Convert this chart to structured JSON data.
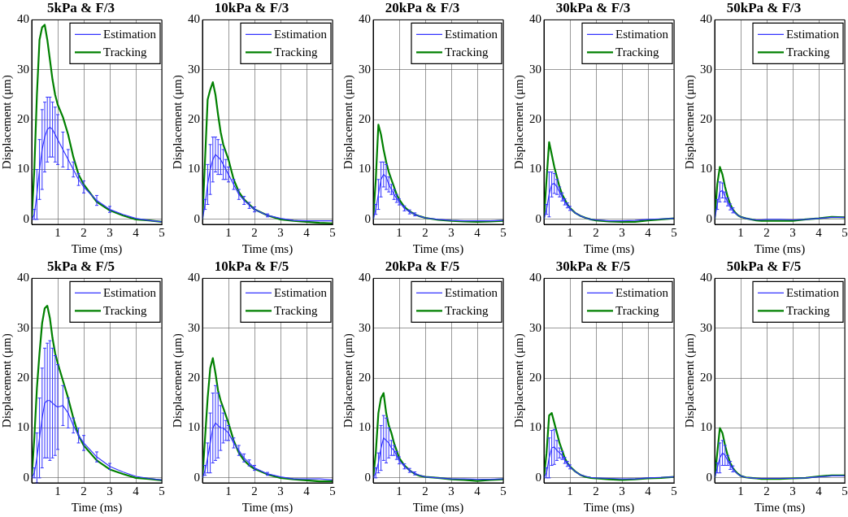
{
  "chart_data": [
    {
      "type": "line",
      "title": "5kPa & F/3",
      "xlabel": "Time (ms)",
      "ylabel": "Displacement (μm)",
      "xlim": [
        0,
        5
      ],
      "ylim": [
        -1,
        40
      ],
      "xticks": [
        1,
        2,
        3,
        4,
        5
      ],
      "yticks": [
        0,
        10,
        20,
        30,
        40
      ],
      "grid": true,
      "legend": "top right",
      "x": [
        0,
        0.1,
        0.2,
        0.3,
        0.4,
        0.5,
        0.6,
        0.7,
        0.8,
        0.9,
        1,
        1.2,
        1.4,
        1.6,
        1.8,
        2,
        2.5,
        3,
        3.5,
        4,
        4.5,
        5
      ],
      "series": [
        {
          "name": "Estimation",
          "color": "#3333ff",
          "values": [
            0,
            1,
            5,
            10,
            14,
            16.5,
            18,
            18.5,
            18,
            17,
            16,
            14,
            12,
            10,
            8,
            6.5,
            3.8,
            2,
            1,
            0.2,
            -0.2,
            -0.5
          ],
          "errors": [
            null,
            1,
            5,
            6,
            8,
            7,
            6.5,
            6,
            5.5,
            5.5,
            5,
            3.5,
            2,
            1.5,
            1.2,
            1.2,
            1,
            0.6,
            null,
            null,
            null,
            null
          ]
        },
        {
          "name": "Tracking",
          "color": "#008000",
          "values": [
            0,
            10,
            25,
            36,
            38.5,
            39,
            36,
            32,
            28,
            25,
            23,
            20.5,
            17,
            12.5,
            9,
            7,
            3.5,
            1.8,
            0.8,
            0,
            -0.2,
            -0.5
          ]
        }
      ]
    },
    {
      "type": "line",
      "title": "10kPa & F/3",
      "xlabel": "Time (ms)",
      "ylabel": "Displacement (μm)",
      "xlim": [
        0,
        5
      ],
      "ylim": [
        -1,
        40
      ],
      "xticks": [
        1,
        2,
        3,
        4,
        5
      ],
      "yticks": [
        0,
        10,
        20,
        30,
        40
      ],
      "grid": true,
      "legend": "top right",
      "x": [
        0,
        0.1,
        0.2,
        0.3,
        0.4,
        0.5,
        0.6,
        0.7,
        0.8,
        0.9,
        1,
        1.2,
        1.4,
        1.6,
        1.8,
        2,
        2.5,
        3,
        3.5,
        4,
        4.5,
        5
      ],
      "series": [
        {
          "name": "Estimation",
          "color": "#3333ff",
          "values": [
            0,
            3,
            7,
            10,
            12,
            13,
            12.5,
            12,
            11,
            10,
            9,
            7,
            5,
            3.8,
            2.8,
            2,
            0.8,
            0.2,
            -0.2,
            -0.3,
            -0.3,
            -0.3
          ],
          "errors": [
            null,
            1,
            4,
            5,
            4.5,
            3.5,
            3.5,
            3,
            3,
            2,
            1.5,
            1,
            1,
            0.8,
            0.6,
            0.5,
            0.3,
            null,
            null,
            null,
            null,
            null
          ]
        },
        {
          "name": "Tracking",
          "color": "#008000",
          "values": [
            0,
            12,
            24,
            26,
            27.5,
            25,
            21,
            17.5,
            15,
            13.5,
            12,
            8,
            5.5,
            4,
            3,
            2,
            0.8,
            0,
            -0.3,
            -0.5,
            -0.7,
            -0.8
          ]
        }
      ]
    },
    {
      "type": "line",
      "title": "20kPa & F/3",
      "xlabel": "Time (ms)",
      "ylabel": "Displacement (μm)",
      "xlim": [
        0,
        5
      ],
      "ylim": [
        -1,
        40
      ],
      "xticks": [
        1,
        2,
        3,
        4,
        5
      ],
      "yticks": [
        0,
        10,
        20,
        30,
        40
      ],
      "grid": true,
      "legend": "top right",
      "x": [
        0,
        0.1,
        0.2,
        0.3,
        0.4,
        0.5,
        0.6,
        0.7,
        0.8,
        0.9,
        1,
        1.2,
        1.4,
        1.6,
        1.8,
        2,
        2.5,
        3,
        3.5,
        4,
        4.5,
        5
      ],
      "series": [
        {
          "name": "Estimation",
          "color": "#3333ff",
          "values": [
            0,
            2,
            5,
            8,
            9,
            8.5,
            7,
            6,
            5,
            4.2,
            3.5,
            2.2,
            1.5,
            1,
            0.6,
            0.3,
            0,
            -0.2,
            -0.3,
            -0.3,
            -0.3,
            -0.2
          ],
          "errors": [
            null,
            1,
            3,
            3.5,
            2.5,
            2.5,
            1.5,
            1,
            1,
            0.8,
            0.6,
            0.5,
            0.4,
            0.3,
            null,
            null,
            null,
            null,
            null,
            null,
            null,
            null
          ]
        },
        {
          "name": "Tracking",
          "color": "#008000",
          "values": [
            0,
            8,
            19,
            17,
            14,
            11.5,
            9.5,
            8,
            6.5,
            5,
            4,
            2.5,
            1.6,
            1,
            0.6,
            0.3,
            -0.1,
            -0.3,
            -0.4,
            -0.5,
            -0.4,
            -0.3
          ]
        }
      ]
    },
    {
      "type": "line",
      "title": "30kPa & F/3",
      "xlabel": "Time (ms)",
      "ylabel": "Displacement (μm)",
      "xlim": [
        0,
        5
      ],
      "ylim": [
        -1,
        40
      ],
      "xticks": [
        1,
        2,
        3,
        4,
        5
      ],
      "yticks": [
        0,
        10,
        20,
        30,
        40
      ],
      "grid": true,
      "legend": "top right",
      "x": [
        0,
        0.1,
        0.2,
        0.3,
        0.4,
        0.5,
        0.6,
        0.7,
        0.8,
        0.9,
        1,
        1.2,
        1.4,
        1.6,
        1.8,
        2,
        2.5,
        3,
        3.5,
        4,
        4.5,
        5
      ],
      "series": [
        {
          "name": "Estimation",
          "color": "#3333ff",
          "values": [
            0,
            2,
            5,
            7,
            7.2,
            6.5,
            5.5,
            4.5,
            3.5,
            2.8,
            2.2,
            1.3,
            0.7,
            0.3,
            0,
            -0.1,
            -0.3,
            -0.3,
            -0.2,
            0,
            0.1,
            0.2
          ],
          "errors": [
            null,
            1,
            4.5,
            2.5,
            2,
            1.5,
            1,
            0.8,
            0.6,
            0.5,
            0.4,
            null,
            null,
            null,
            null,
            null,
            null,
            null,
            null,
            null,
            null,
            null
          ]
        },
        {
          "name": "Tracking",
          "color": "#008000",
          "values": [
            0,
            8,
            15.5,
            13,
            10.5,
            8.5,
            6.5,
            5,
            4,
            3,
            2.3,
            1.3,
            0.7,
            0.3,
            0,
            -0.2,
            -0.4,
            -0.5,
            -0.5,
            -0.2,
            0,
            0.2
          ]
        }
      ]
    },
    {
      "type": "line",
      "title": "50kPa & F/3",
      "xlabel": "Time (ms)",
      "ylabel": "Displacement (μm)",
      "xlim": [
        0,
        5
      ],
      "ylim": [
        -1,
        40
      ],
      "xticks": [
        1,
        2,
        3,
        4,
        5
      ],
      "yticks": [
        0,
        10,
        20,
        30,
        40
      ],
      "grid": true,
      "legend": "top right",
      "x": [
        0,
        0.1,
        0.2,
        0.3,
        0.4,
        0.5,
        0.6,
        0.7,
        0.8,
        0.9,
        1,
        1.2,
        1.4,
        1.6,
        1.8,
        2,
        2.5,
        3,
        3.5,
        4,
        4.5,
        5
      ],
      "series": [
        {
          "name": "Estimation",
          "color": "#3333ff",
          "values": [
            0,
            3,
            5.5,
            5.8,
            4.5,
            3.5,
            2.5,
            1.8,
            1.2,
            0.8,
            0.5,
            0.2,
            0,
            -0.1,
            -0.1,
            0,
            0,
            -0.1,
            0,
            0.2,
            0.4,
            0.4
          ],
          "errors": [
            null,
            1,
            2,
            1.5,
            1,
            0.8,
            0.6,
            0.5,
            null,
            null,
            null,
            null,
            null,
            null,
            null,
            null,
            null,
            null,
            null,
            null,
            null,
            null
          ]
        },
        {
          "name": "Tracking",
          "color": "#008000",
          "values": [
            0,
            7,
            10.5,
            9,
            6.5,
            4.5,
            3,
            2,
            1.3,
            0.8,
            0.5,
            0.2,
            0,
            -0.2,
            -0.3,
            -0.3,
            -0.3,
            -0.3,
            0,
            0.2,
            0.5,
            0.4
          ]
        }
      ]
    },
    {
      "type": "line",
      "title": "5kPa & F/5",
      "xlabel": "Time (ms)",
      "ylabel": "Displacement (μm)",
      "xlim": [
        0,
        5
      ],
      "ylim": [
        -1,
        40
      ],
      "xticks": [
        1,
        2,
        3,
        4,
        5
      ],
      "yticks": [
        0,
        10,
        20,
        30,
        40
      ],
      "grid": true,
      "legend": "top right",
      "x": [
        0,
        0.1,
        0.2,
        0.3,
        0.4,
        0.5,
        0.6,
        0.7,
        0.8,
        0.9,
        1,
        1.2,
        1.4,
        1.6,
        1.8,
        2,
        2.5,
        3,
        3.5,
        4,
        4.5,
        5
      ],
      "series": [
        {
          "name": "Estimation",
          "color": "#3333ff",
          "values": [
            0,
            1,
            4,
            8,
            12,
            15,
            15.5,
            15.5,
            15,
            14.5,
            14.2,
            14.5,
            13,
            10.5,
            8.5,
            7,
            4.2,
            2.3,
            1.2,
            0.3,
            -0.1,
            -0.4
          ],
          "errors": [
            null,
            1,
            5,
            8,
            10,
            11,
            11.5,
            12,
            11,
            10,
            8.5,
            4,
            3,
            1.5,
            1.5,
            1.5,
            1,
            0.6,
            null,
            null,
            null,
            null
          ]
        },
        {
          "name": "Tracking",
          "color": "#008000",
          "values": [
            0,
            8,
            18,
            25,
            31,
            34,
            34.5,
            32,
            28,
            25,
            23,
            19.5,
            16,
            12,
            8.5,
            6.5,
            3.5,
            1.7,
            0.8,
            0,
            -0.2,
            -0.5
          ]
        }
      ]
    },
    {
      "type": "line",
      "title": "10kPa & F/5",
      "xlabel": "Time (ms)",
      "ylabel": "Displacement (μm)",
      "xlim": [
        0,
        5
      ],
      "ylim": [
        -1,
        40
      ],
      "xticks": [
        1,
        2,
        3,
        4,
        5
      ],
      "yticks": [
        0,
        10,
        20,
        30,
        40
      ],
      "grid": true,
      "legend": "top right",
      "x": [
        0,
        0.1,
        0.2,
        0.3,
        0.4,
        0.5,
        0.6,
        0.7,
        0.8,
        0.9,
        1,
        1.2,
        1.4,
        1.6,
        1.8,
        2,
        2.5,
        3,
        3.5,
        4,
        4.5,
        5
      ],
      "series": [
        {
          "name": "Estimation",
          "color": "#3333ff",
          "values": [
            0,
            1.5,
            4,
            7,
            10,
            11,
            10.5,
            10,
            10,
            9.5,
            9,
            7,
            5.5,
            4,
            3,
            2,
            0.8,
            0.2,
            -0.2,
            -0.2,
            -0.2,
            -0.4
          ],
          "errors": [
            null,
            1,
            3,
            6,
            7,
            7.5,
            6.5,
            4.5,
            3,
            2,
            1.5,
            1,
            1,
            0.8,
            0.6,
            0.5,
            0.3,
            null,
            null,
            null,
            null,
            null
          ]
        },
        {
          "name": "Tracking",
          "color": "#008000",
          "values": [
            0,
            8,
            16,
            22,
            24,
            21,
            17.5,
            15.5,
            14,
            12.5,
            11,
            7.5,
            5,
            3.5,
            2.5,
            1.8,
            0.7,
            0,
            -0.3,
            -0.5,
            -0.7,
            -0.7
          ]
        }
      ]
    },
    {
      "type": "line",
      "title": "20kPa & F/5",
      "xlabel": "Time (ms)",
      "ylabel": "Displacement (μm)",
      "xlim": [
        0,
        5
      ],
      "ylim": [
        -1,
        40
      ],
      "xticks": [
        1,
        2,
        3,
        4,
        5
      ],
      "yticks": [
        0,
        10,
        20,
        30,
        40
      ],
      "grid": true,
      "legend": "top right",
      "x": [
        0,
        0.1,
        0.2,
        0.3,
        0.4,
        0.5,
        0.6,
        0.7,
        0.8,
        0.9,
        1,
        1.2,
        1.4,
        1.6,
        1.8,
        2,
        2.5,
        3,
        3.5,
        4,
        4.5,
        5
      ],
      "series": [
        {
          "name": "Estimation",
          "color": "#3333ff",
          "values": [
            0,
            1,
            3,
            6,
            8,
            7.5,
            7,
            6,
            5.5,
            4.5,
            3.5,
            2.3,
            1.5,
            0.9,
            0.5,
            0.2,
            0,
            -0.2,
            -0.2,
            -0.3,
            -0.3,
            -0.2
          ],
          "errors": [
            null,
            1,
            2,
            4.5,
            4.5,
            4.5,
            3,
            1.5,
            1,
            0.8,
            0.7,
            0.5,
            0.4,
            0.3,
            null,
            null,
            null,
            null,
            null,
            null,
            null,
            null
          ]
        },
        {
          "name": "Tracking",
          "color": "#008000",
          "values": [
            0,
            5,
            13,
            16,
            17,
            13,
            10.5,
            9,
            7,
            5.5,
            4,
            2.5,
            1.5,
            0.8,
            0.4,
            0.2,
            0,
            -0.3,
            -0.4,
            -0.6,
            -0.4,
            -0.3
          ]
        }
      ]
    },
    {
      "type": "line",
      "title": "30kPa & F/5",
      "xlabel": "Time (ms)",
      "ylabel": "Displacement (μm)",
      "xlim": [
        0,
        5
      ],
      "ylim": [
        -1,
        40
      ],
      "xticks": [
        1,
        2,
        3,
        4,
        5
      ],
      "yticks": [
        0,
        10,
        20,
        30,
        40
      ],
      "grid": true,
      "legend": "top right",
      "x": [
        0,
        0.1,
        0.2,
        0.3,
        0.4,
        0.5,
        0.6,
        0.7,
        0.8,
        0.9,
        1,
        1.2,
        1.4,
        1.6,
        1.8,
        2,
        2.5,
        3,
        3.5,
        4,
        4.5,
        5
      ],
      "series": [
        {
          "name": "Estimation",
          "color": "#3333ff",
          "values": [
            0,
            1,
            4,
            6,
            6.2,
            5.5,
            5,
            4.5,
            3.5,
            2.8,
            2.2,
            1.3,
            0.6,
            0.3,
            0.1,
            0,
            -0.1,
            -0.2,
            -0.2,
            0,
            0.1,
            0.2
          ],
          "errors": [
            null,
            1,
            4,
            3.5,
            3.5,
            2,
            1,
            0.8,
            0.6,
            0.5,
            0.4,
            null,
            null,
            null,
            null,
            null,
            null,
            null,
            null,
            null,
            null,
            null
          ]
        },
        {
          "name": "Tracking",
          "color": "#008000",
          "values": [
            0,
            5,
            12.5,
            13,
            11,
            9,
            7,
            5.5,
            4,
            3,
            2.3,
            1.3,
            0.6,
            0.2,
            0,
            -0.1,
            -0.3,
            -0.4,
            -0.3,
            -0.1,
            0,
            0.2
          ]
        }
      ]
    },
    {
      "type": "line",
      "title": "50kPa & F/5",
      "xlabel": "Time (ms)",
      "ylabel": "Displacement (μm)",
      "xlim": [
        0,
        5
      ],
      "ylim": [
        -1,
        40
      ],
      "xticks": [
        1,
        2,
        3,
        4,
        5
      ],
      "yticks": [
        0,
        10,
        20,
        30,
        40
      ],
      "grid": true,
      "legend": "top right",
      "x": [
        0,
        0.1,
        0.2,
        0.3,
        0.4,
        0.5,
        0.6,
        0.7,
        0.8,
        0.9,
        1,
        1.2,
        1.4,
        1.6,
        1.8,
        2,
        2.5,
        3,
        3.5,
        4,
        4.5,
        5
      ],
      "series": [
        {
          "name": "Estimation",
          "color": "#3333ff",
          "values": [
            0,
            2,
            4,
            5,
            4.5,
            3.5,
            2.5,
            1.8,
            1.2,
            0.7,
            0.4,
            0.1,
            0,
            -0.1,
            -0.1,
            -0.1,
            -0.1,
            -0.1,
            0,
            0.2,
            0.4,
            0.4
          ],
          "errors": [
            null,
            1,
            3,
            2.5,
            2,
            1,
            0.8,
            0.6,
            null,
            null,
            null,
            null,
            null,
            null,
            null,
            null,
            null,
            null,
            null,
            null,
            null,
            null
          ]
        },
        {
          "name": "Tracking",
          "color": "#008000",
          "values": [
            0,
            5,
            10,
            9,
            6.5,
            4.5,
            3,
            2,
            1.3,
            0.8,
            0.4,
            0.1,
            0,
            -0.1,
            -0.2,
            -0.2,
            -0.2,
            -0.1,
            0,
            0.3,
            0.5,
            0.5
          ]
        }
      ]
    }
  ]
}
